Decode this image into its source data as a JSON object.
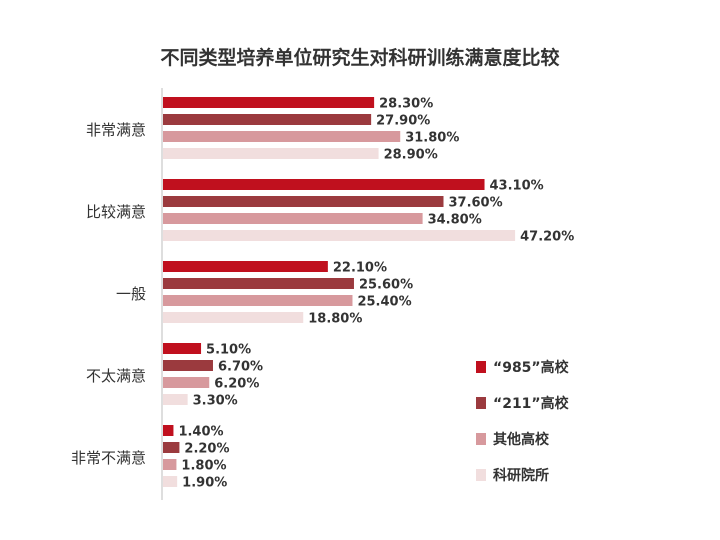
{
  "chart_data": {
    "type": "bar",
    "orientation": "horizontal",
    "title": "不同类型培养单位研究生对科研训练满意度比较",
    "categories": [
      "非常满意",
      "比较满意",
      "一般",
      "不太满意",
      "非常不满意"
    ],
    "series": [
      {
        "name": "“985”高校",
        "color": "#c0101e",
        "values": [
          28.3,
          43.1,
          22.1,
          5.1,
          1.4
        ],
        "labels": [
          "28.30%",
          "43.10%",
          "22.10%",
          "5.10%",
          "1.40%"
        ]
      },
      {
        "name": "“211”高校",
        "color": "#9b3a3e",
        "values": [
          27.9,
          37.6,
          25.6,
          6.7,
          2.2
        ],
        "labels": [
          "27.90%",
          "37.60%",
          "25.60%",
          "6.70%",
          "2.20%"
        ]
      },
      {
        "name": "其他高校",
        "color": "#d7999d",
        "values": [
          31.8,
          34.8,
          25.4,
          6.2,
          1.8
        ],
        "labels": [
          "31.80%",
          "34.80%",
          "25.40%",
          "6.20%",
          "1.80%"
        ]
      },
      {
        "name": "科研院所",
        "color": "#f1dede",
        "values": [
          28.9,
          47.2,
          18.8,
          3.3,
          1.9
        ],
        "labels": [
          "28.90%",
          "47.20%",
          "18.80%",
          "3.30%",
          "1.90%"
        ]
      }
    ],
    "xlim": [
      0,
      50
    ],
    "grid": false,
    "legend": "bottom-right"
  }
}
